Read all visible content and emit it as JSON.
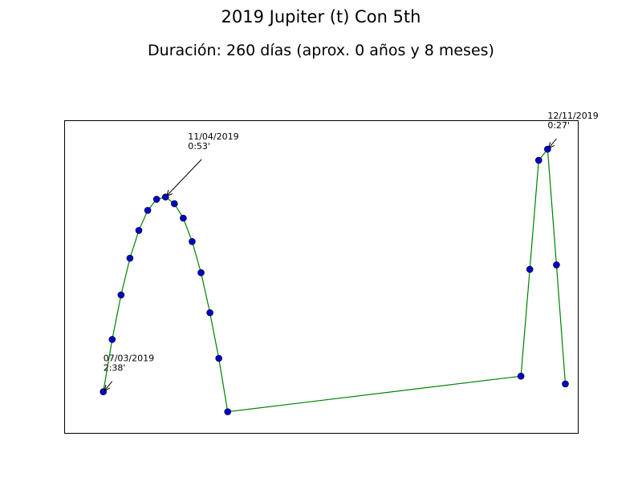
{
  "chart_data": {
    "type": "line",
    "title": "2019 Jupiter (t) Con 5th",
    "subtitle": "Duración: 260 días (aprox. 0 años y 8 meses)",
    "x": [
      66,
      71,
      76,
      81,
      86,
      91,
      96,
      101,
      106,
      111,
      116,
      121,
      126,
      131,
      136,
      301,
      306,
      311,
      316,
      321,
      326
    ],
    "series": [
      {
        "color": "#008000",
        "marker_color": "#0000cc",
        "values": [
          2.63,
          2.16,
          1.76,
          1.43,
          1.18,
          1.0,
          0.9,
          0.88,
          0.94,
          1.07,
          1.28,
          1.56,
          1.92,
          2.33,
          2.81,
          2.49,
          1.53,
          0.55,
          0.45,
          1.49,
          2.56
        ]
      }
    ],
    "xlim": [
      44,
      333
    ],
    "ylim": [
      3.0,
      0.19
    ],
    "annotations": [
      {
        "x": 66,
        "y": 2.63,
        "label": [
          "07/03/2019",
          "2:38'"
        ],
        "offset": "near"
      },
      {
        "x": 101,
        "y": 0.88,
        "label": [
          "11/04/2019",
          "0:53'"
        ],
        "offset": "far"
      },
      {
        "x": 316,
        "y": 0.45,
        "label": [
          "12/11/2019",
          "0:27'"
        ],
        "offset": "near"
      }
    ]
  }
}
